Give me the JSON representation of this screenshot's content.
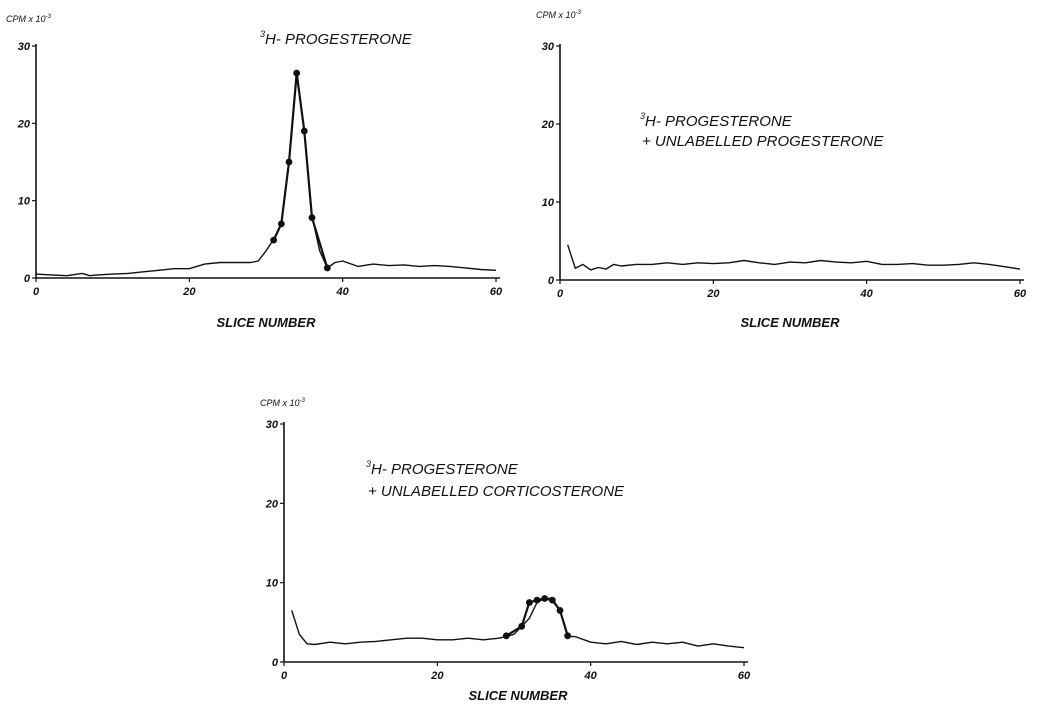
{
  "chart_data": [
    {
      "type": "line",
      "title": "H- PROGESTERONE",
      "title_superscript": "3",
      "title_line2": "",
      "ylabel": "CPM x 10",
      "ylabel_exponent": "-3",
      "xlabel": "SLICE NUMBER",
      "xlim": [
        0,
        60
      ],
      "ylim": [
        0,
        30
      ],
      "xticks": [
        "0",
        "20",
        "40",
        "60"
      ],
      "yticks": [
        "0",
        "10",
        "20",
        "30"
      ],
      "grid": false,
      "legend": "none",
      "series": [
        {
          "x": [
            0,
            2,
            4,
            6,
            7,
            8,
            10,
            12,
            14,
            16,
            18,
            20,
            22,
            24,
            26,
            28,
            29,
            30,
            31,
            32,
            33,
            34,
            35,
            36,
            37,
            38,
            39,
            40,
            42,
            44,
            46,
            48,
            50,
            52,
            54,
            56,
            58,
            60
          ],
          "y": [
            0.5,
            0.4,
            0.3,
            0.6,
            0.3,
            0.4,
            0.5,
            0.6,
            0.8,
            1.0,
            1.2,
            1.2,
            1.8,
            2.0,
            2.0,
            2.0,
            2.2,
            3.5,
            5.0,
            7.0,
            15.0,
            26.5,
            19.0,
            8.0,
            3.5,
            1.3,
            2.0,
            2.2,
            1.5,
            1.8,
            1.6,
            1.7,
            1.5,
            1.6,
            1.5,
            1.3,
            1.1,
            1.0
          ],
          "markers_x": [
            31,
            32,
            33,
            34,
            35,
            36,
            38
          ],
          "markers_y": [
            4.9,
            7.0,
            15.0,
            26.5,
            19.0,
            7.8,
            1.3
          ]
        }
      ]
    },
    {
      "type": "line",
      "title": "H- PROGESTERONE",
      "title_superscript": "3",
      "title_line2": "+ UNLABELLED PROGESTERONE",
      "ylabel": "CPM x 10",
      "ylabel_exponent": "-3",
      "xlabel": "SLICE NUMBER",
      "xlim": [
        0,
        60
      ],
      "ylim": [
        0,
        30
      ],
      "xticks": [
        "0",
        "20",
        "40",
        "60"
      ],
      "yticks": [
        "0",
        "10",
        "20",
        "30"
      ],
      "grid": false,
      "legend": "none",
      "series": [
        {
          "x": [
            1,
            2,
            3,
            4,
            5,
            6,
            7,
            8,
            10,
            12,
            14,
            16,
            18,
            20,
            22,
            24,
            26,
            28,
            30,
            32,
            34,
            36,
            38,
            40,
            42,
            44,
            46,
            48,
            50,
            52,
            54,
            56,
            58,
            60
          ],
          "y": [
            4.5,
            1.5,
            2.0,
            1.3,
            1.6,
            1.4,
            2.0,
            1.8,
            2.0,
            2.0,
            2.2,
            2.0,
            2.2,
            2.1,
            2.2,
            2.5,
            2.2,
            2.0,
            2.3,
            2.2,
            2.5,
            2.3,
            2.2,
            2.4,
            2.0,
            2.0,
            2.1,
            1.9,
            1.9,
            2.0,
            2.2,
            2.0,
            1.7,
            1.4
          ],
          "markers_x": [],
          "markers_y": []
        }
      ]
    },
    {
      "type": "line",
      "title": "H- PROGESTERONE",
      "title_superscript": "3",
      "title_line2": "+ UNLABELLED CORTICOSTERONE",
      "ylabel": "CPM x 10",
      "ylabel_exponent": "-3",
      "xlabel": "SLICE NUMBER",
      "xlim": [
        0,
        60
      ],
      "ylim": [
        0,
        30
      ],
      "xticks": [
        "0",
        "20",
        "40",
        "60"
      ],
      "yticks": [
        "0",
        "10",
        "20",
        "30"
      ],
      "grid": false,
      "legend": "none",
      "series": [
        {
          "x": [
            1,
            2,
            3,
            4,
            6,
            8,
            10,
            12,
            14,
            16,
            18,
            20,
            22,
            24,
            26,
            28,
            29,
            30,
            31,
            32,
            33,
            34,
            35,
            36,
            37,
            38,
            40,
            42,
            44,
            46,
            48,
            50,
            52,
            54,
            56,
            58,
            60
          ],
          "y": [
            6.5,
            3.5,
            2.3,
            2.2,
            2.5,
            2.3,
            2.5,
            2.6,
            2.8,
            3.0,
            3.0,
            2.8,
            2.8,
            3.0,
            2.8,
            3.0,
            3.2,
            3.5,
            4.5,
            5.5,
            7.5,
            8.0,
            8.0,
            6.5,
            3.2,
            3.2,
            2.5,
            2.3,
            2.6,
            2.2,
            2.5,
            2.3,
            2.5,
            2.0,
            2.3,
            2.0,
            1.8
          ],
          "markers_x": [
            29,
            31,
            32,
            33,
            34,
            35,
            36,
            37
          ],
          "markers_y": [
            3.3,
            4.5,
            7.5,
            7.8,
            8.0,
            7.8,
            6.5,
            3.3
          ]
        }
      ]
    }
  ]
}
